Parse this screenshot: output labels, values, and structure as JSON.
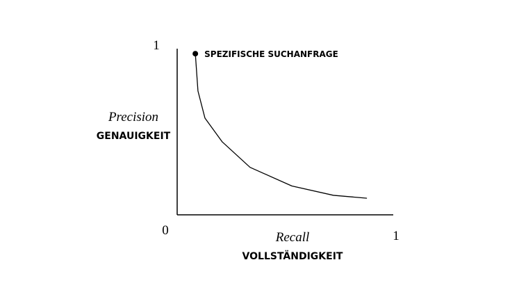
{
  "chart_data": {
    "type": "line",
    "ylabel": "Precision",
    "ylabel_sub": "GENAUIGKEIT",
    "xlabel": "Recall",
    "xlabel_sub": "VOLLSTÄNDIGKEIT",
    "annotation": "SPEZIFISCHE SUCHANFRAGE",
    "xlim": [
      0,
      1
    ],
    "ylim": [
      0,
      1
    ],
    "xticks": [
      0,
      1
    ],
    "yticks": [
      1
    ],
    "x": [
      0.083,
      0.095,
      0.127,
      0.206,
      0.333,
      0.524,
      0.714,
      0.867
    ],
    "series": [
      {
        "color": "#000000",
        "values": [
          0.95,
          0.73,
          0.57,
          0.43,
          0.28,
          0.17,
          0.115,
          0.098
        ]
      }
    ]
  }
}
